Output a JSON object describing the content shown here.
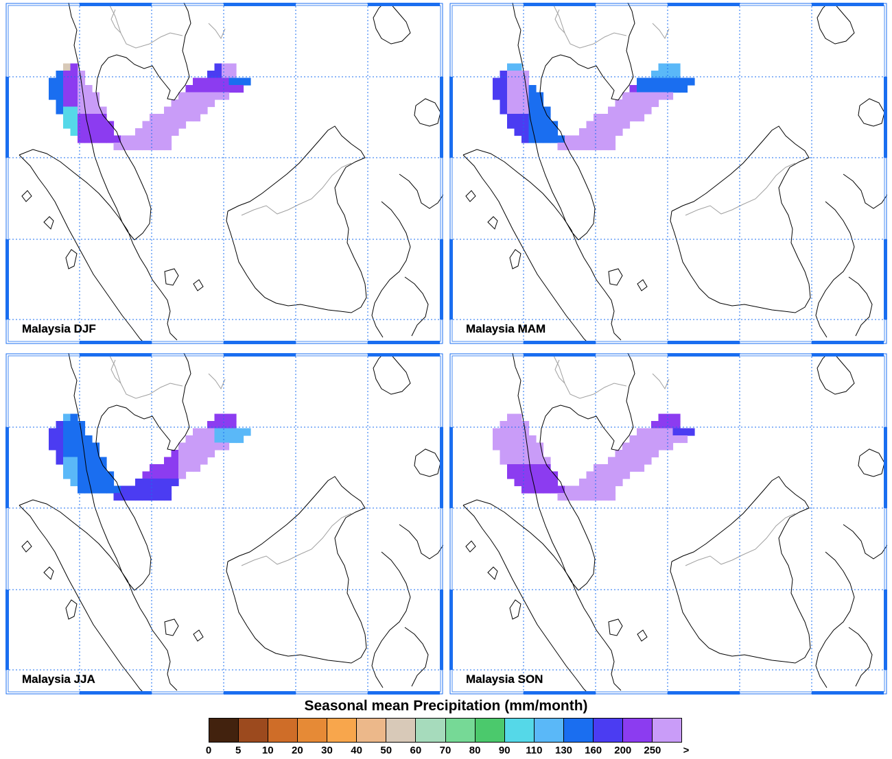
{
  "panels": [
    {
      "label": "Malaysia DJF"
    },
    {
      "label": "Malaysia MAM"
    },
    {
      "label": "Malaysia JJA"
    },
    {
      "label": "Malaysia SON"
    }
  ],
  "legend": {
    "title": "Seasonal mean Precipitation (mm/month)",
    "ticks": [
      "0",
      "5",
      "10",
      "20",
      "30",
      "40",
      "50",
      "60",
      "70",
      "80",
      "90",
      "110",
      "130",
      "160",
      "200",
      "250",
      ">"
    ],
    "colors": [
      "#42220e",
      "#9c4a1e",
      "#cf6d28",
      "#e68a36",
      "#f8a64c",
      "#ecb88a",
      "#d8c9b8",
      "#a6dbbc",
      "#76d996",
      "#4bc96c",
      "#55d8e8",
      "#5ab8f8",
      "#1a6ef0",
      "#4b3cf2",
      "#8c3cf0",
      "#c99cf8"
    ]
  },
  "map_style": {
    "frame_color": "#1a6ef0",
    "grid_color": "#1a6ef0",
    "coast_color": "#000000",
    "border_color": "#a0a0a0"
  }
}
